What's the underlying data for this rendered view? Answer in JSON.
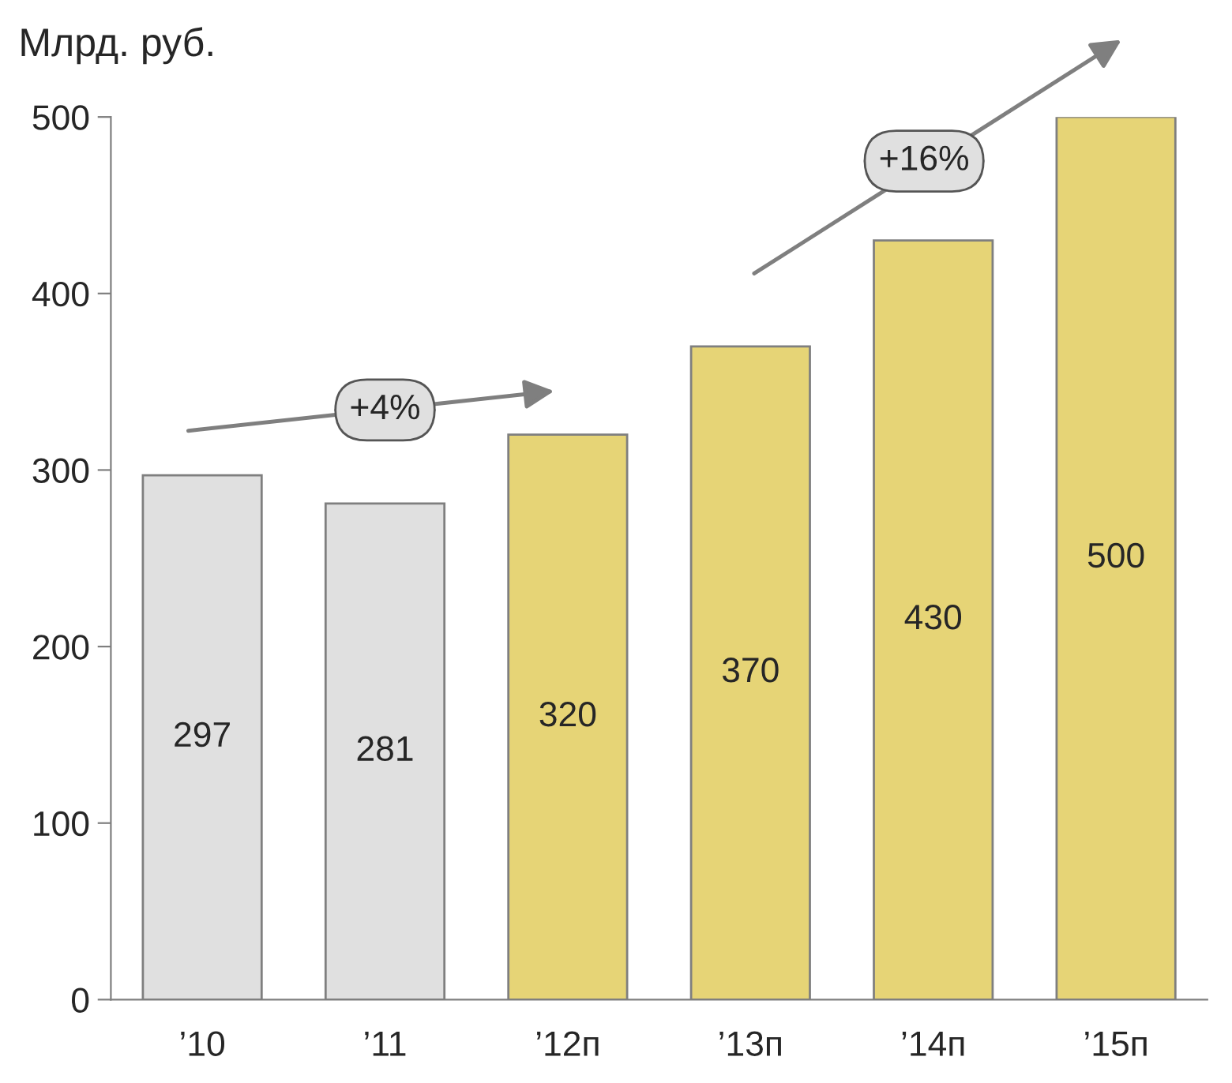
{
  "chart_data": {
    "type": "bar",
    "ylabel": "Млрд. руб.",
    "categories": [
      "’10",
      "’11",
      "’12п",
      "’13п",
      "’14п",
      "’15п"
    ],
    "values": [
      297,
      281,
      320,
      370,
      430,
      500
    ],
    "colors": [
      "#e0e0e0",
      "#e0e0e0",
      "#e6d476",
      "#e6d476",
      "#e6d476",
      "#e6d476"
    ],
    "ylim": [
      0,
      500
    ],
    "yticks": [
      0,
      100,
      200,
      300,
      400,
      500
    ],
    "data_labels": true,
    "grid": false,
    "annotations": [
      "+4%",
      "+16%"
    ]
  }
}
